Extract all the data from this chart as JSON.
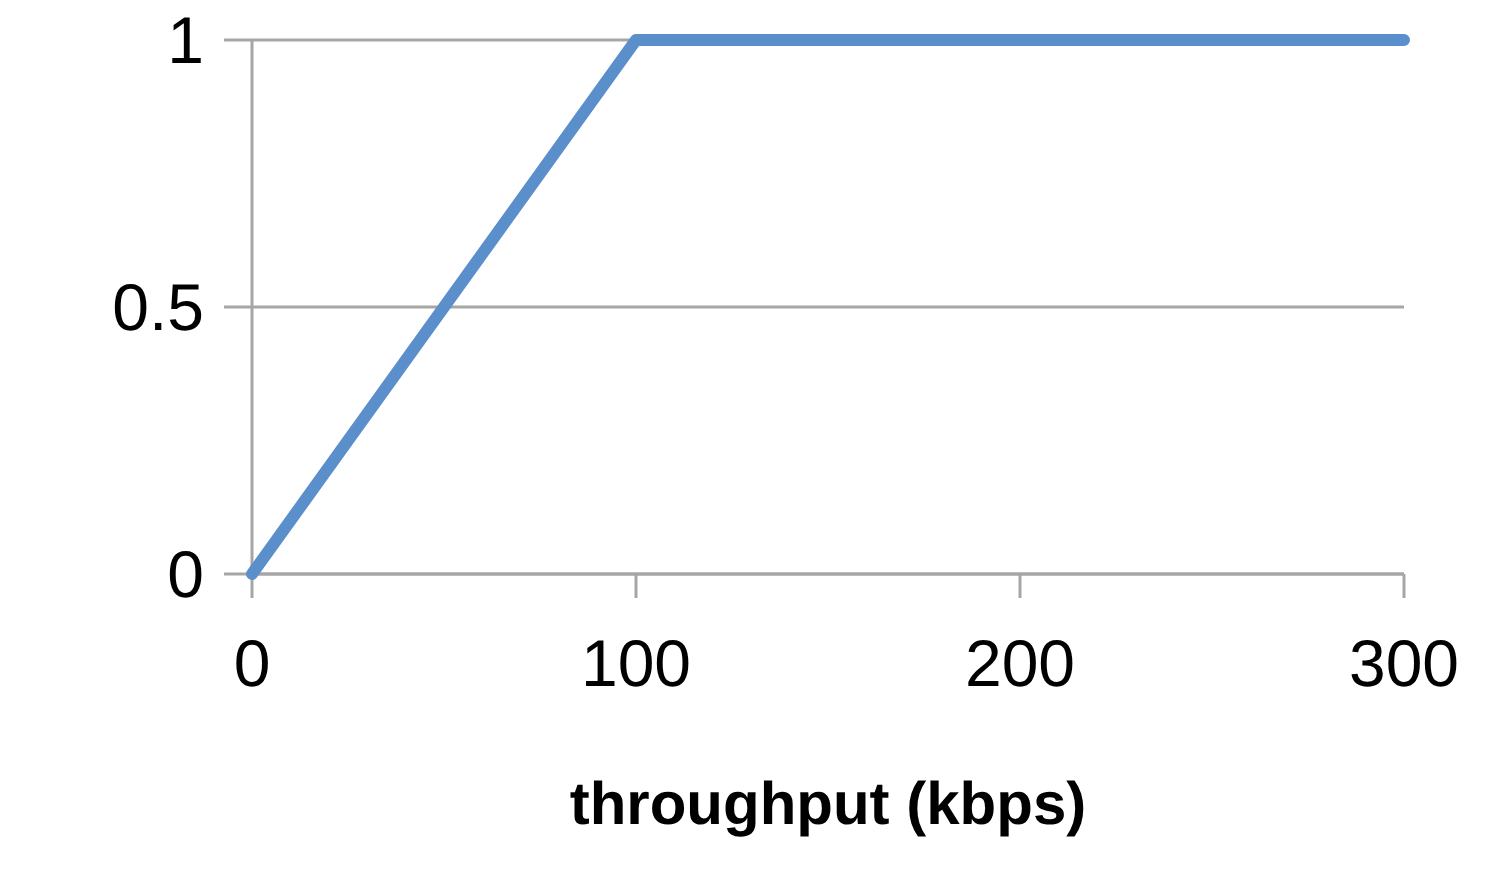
{
  "chart_data": {
    "type": "line",
    "xlabel": "throughput (kbps)",
    "x": [
      0,
      100,
      300
    ],
    "series": [
      {
        "color": "#5b8fcc",
        "values": [
          0,
          1,
          1
        ]
      }
    ],
    "xlim": [
      0,
      300
    ],
    "xticks": [
      0,
      100,
      200,
      300
    ],
    "ylim": [
      0,
      1
    ],
    "yticks": [
      0,
      0.5,
      1
    ],
    "grid": "y",
    "marker": "none",
    "line_style": "solid"
  }
}
